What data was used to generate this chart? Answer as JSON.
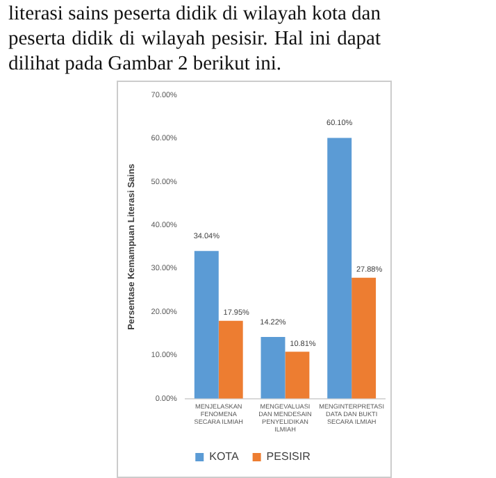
{
  "chart_data": {
    "type": "bar",
    "ylabel": "Persentase Kemampuan Literasi Sains",
    "annotations": [
      "literasi sains peserta didik di wilayah kota dan peserta didik di wilayah pesisir. Hal ini dapat dilihat pada Gambar 2 berikut ini."
    ],
    "categories": [
      "MENJELASKAN FENOMENA SECARA ILMIAH",
      "MENGEVALUASI DAN MENDESAIN PENYELIDIKAN ILMIAH",
      "MENGINTERPRETASI DATA DAN BUKTI SECARA ILMIAH"
    ],
    "series": [
      {
        "name": "KOTA",
        "color": "#5b9bd5",
        "values": [
          34.04,
          14.22,
          60.1
        ],
        "value_labels": [
          "34.04%",
          "14.22%",
          "60.10%"
        ]
      },
      {
        "name": "PESISIR",
        "color": "#ed7d31",
        "values": [
          17.95,
          10.81,
          27.88
        ],
        "value_labels": [
          "17.95%",
          "10.81%",
          "27.88%"
        ]
      }
    ],
    "ylim": [
      0,
      70
    ],
    "yticks": [
      {
        "value": 0,
        "label": "0.00%"
      },
      {
        "value": 10,
        "label": "10.00%"
      },
      {
        "value": 20,
        "label": "20.00%"
      },
      {
        "value": 30,
        "label": "30.00%"
      },
      {
        "value": 40,
        "label": "40.00%"
      },
      {
        "value": 50,
        "label": "50.00%"
      },
      {
        "value": 60,
        "label": "60.00%"
      },
      {
        "value": 70,
        "label": "70.00%"
      }
    ],
    "grid": false,
    "legend": "bottom"
  }
}
